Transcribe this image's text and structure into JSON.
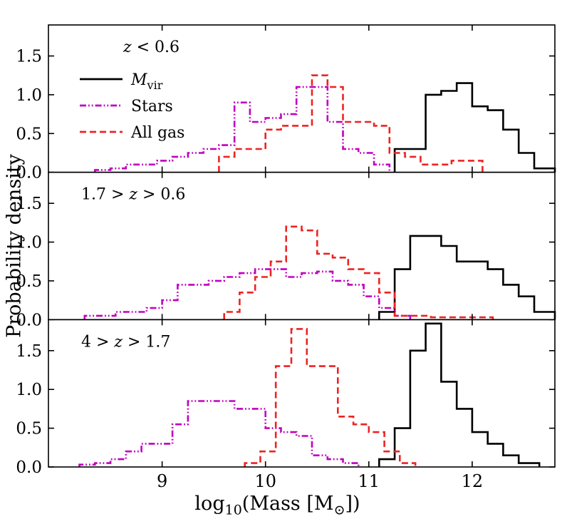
{
  "figure": {
    "ylabel": "Probability density",
    "xlabel": {
      "prefix": "log",
      "sub": "10",
      "mid": "(Mass [M",
      "odot": "⊙",
      "suffix": "])"
    },
    "background": "#ffffff",
    "colors": {
      "mvir": "#000000",
      "stars": "#bf00bf",
      "allgas": "#ee2222"
    }
  },
  "axes": {
    "xlim": [
      7.9,
      12.8
    ],
    "ylim": [
      0.0,
      1.9
    ],
    "xticks": [
      9,
      10,
      11,
      12
    ],
    "xtick_labels": [
      "9",
      "10",
      "11",
      "12"
    ],
    "yticks": [
      0.0,
      0.5,
      1.0,
      1.5
    ],
    "ytick_labels": [
      "0.0",
      "0.5",
      "1.0",
      "1.5"
    ],
    "grid": false,
    "legend_position": "upper-left-of-first-panel"
  },
  "legend": {
    "entries": [
      {
        "key": "mvir",
        "name": "M_vir",
        "color": "#000000",
        "style": "solid",
        "label": [
          {
            "t": "M",
            "italic": true
          },
          {
            "t": "vir",
            "sub": true
          }
        ]
      },
      {
        "key": "stars",
        "name": "Stars",
        "color": "#bf00bf",
        "style": "dashdot",
        "label": [
          {
            "t": "Stars"
          }
        ]
      },
      {
        "key": "allgas",
        "name": "All gas",
        "color": "#ee2222",
        "style": "dashed",
        "label": [
          {
            "t": "All gas"
          }
        ]
      }
    ]
  },
  "chart_data": [
    {
      "type": "step-histogram",
      "panel": "z < 0.6",
      "annotation": [
        {
          "t": "z",
          "italic": true
        },
        {
          "t": " < 0.6"
        }
      ],
      "series": [
        {
          "key": "mvir",
          "name": "M_vir",
          "color": "#000000",
          "style": "solid",
          "edges": [
            11.25,
            11.4,
            11.55,
            11.7,
            11.85,
            12.0,
            12.15,
            12.3,
            12.45,
            12.6,
            12.8
          ],
          "values": [
            0.3,
            0.3,
            1.0,
            1.05,
            1.15,
            0.85,
            0.8,
            0.55,
            0.25,
            0.05
          ]
        },
        {
          "key": "stars",
          "name": "Stars",
          "color": "#bf00bf",
          "style": "dashdot",
          "edges": [
            8.35,
            8.5,
            8.65,
            8.8,
            8.95,
            9.1,
            9.25,
            9.4,
            9.55,
            9.7,
            9.85,
            10.0,
            10.15,
            10.3,
            10.45,
            10.6,
            10.75,
            10.9,
            11.05,
            11.2
          ],
          "values": [
            0.03,
            0.05,
            0.1,
            0.1,
            0.15,
            0.2,
            0.25,
            0.3,
            0.35,
            0.9,
            0.65,
            0.7,
            0.75,
            1.1,
            1.1,
            0.65,
            0.3,
            0.25,
            0.1
          ]
        },
        {
          "key": "allgas",
          "name": "All gas",
          "color": "#ee2222",
          "style": "dashed",
          "edges": [
            9.55,
            9.7,
            9.85,
            10.0,
            10.15,
            10.3,
            10.45,
            10.6,
            10.75,
            10.9,
            11.05,
            11.2,
            11.35,
            11.5,
            11.65,
            11.8,
            11.95,
            12.1
          ],
          "values": [
            0.2,
            0.3,
            0.3,
            0.55,
            0.6,
            0.6,
            1.25,
            1.1,
            0.65,
            0.65,
            0.6,
            0.25,
            0.2,
            0.1,
            0.1,
            0.15,
            0.15
          ]
        }
      ]
    },
    {
      "type": "step-histogram",
      "panel": "1.7 > z > 0.6",
      "annotation": [
        {
          "t": "1.7 > "
        },
        {
          "t": "z",
          "italic": true
        },
        {
          "t": " > 0.6"
        }
      ],
      "series": [
        {
          "key": "mvir",
          "name": "M_vir",
          "color": "#000000",
          "style": "solid",
          "edges": [
            11.1,
            11.25,
            11.4,
            11.55,
            11.7,
            11.85,
            12.0,
            12.15,
            12.3,
            12.45,
            12.6,
            12.8
          ],
          "values": [
            0.1,
            0.65,
            1.08,
            1.08,
            0.95,
            0.75,
            0.75,
            0.65,
            0.45,
            0.3,
            0.1
          ]
        },
        {
          "key": "stars",
          "name": "Stars",
          "color": "#bf00bf",
          "style": "dashdot",
          "edges": [
            8.25,
            8.4,
            8.55,
            8.7,
            8.85,
            9.0,
            9.15,
            9.3,
            9.45,
            9.6,
            9.75,
            9.9,
            10.05,
            10.2,
            10.35,
            10.5,
            10.65,
            10.8,
            10.95,
            11.1,
            11.25,
            11.4
          ],
          "values": [
            0.05,
            0.05,
            0.1,
            0.1,
            0.15,
            0.25,
            0.45,
            0.45,
            0.5,
            0.55,
            0.6,
            0.65,
            0.65,
            0.55,
            0.6,
            0.62,
            0.5,
            0.45,
            0.3,
            0.15,
            0.05
          ]
        },
        {
          "key": "allgas",
          "name": "All gas",
          "color": "#ee2222",
          "style": "dashed",
          "edges": [
            9.6,
            9.75,
            9.9,
            10.05,
            10.2,
            10.35,
            10.5,
            10.65,
            10.8,
            10.95,
            11.1,
            11.25,
            11.6,
            11.9,
            12.2
          ],
          "values": [
            0.1,
            0.35,
            0.55,
            0.75,
            1.2,
            1.15,
            0.85,
            0.8,
            0.65,
            0.6,
            0.35,
            0.05,
            0.03,
            0.03
          ]
        }
      ]
    },
    {
      "type": "step-histogram",
      "panel": "4 > z > 1.7",
      "annotation": [
        {
          "t": "4 > "
        },
        {
          "t": "z",
          "italic": true
        },
        {
          "t": " > 1.7"
        }
      ],
      "series": [
        {
          "key": "mvir",
          "name": "M_vir",
          "color": "#000000",
          "style": "solid",
          "edges": [
            11.1,
            11.25,
            11.4,
            11.55,
            11.7,
            11.85,
            12.0,
            12.15,
            12.3,
            12.45,
            12.65
          ],
          "values": [
            0.1,
            0.5,
            1.5,
            1.85,
            1.1,
            0.75,
            0.45,
            0.3,
            0.15,
            0.05
          ]
        },
        {
          "key": "stars",
          "name": "Stars",
          "color": "#bf00bf",
          "style": "dashdot",
          "edges": [
            8.2,
            8.35,
            8.5,
            8.65,
            8.8,
            8.95,
            9.1,
            9.25,
            9.4,
            9.55,
            9.7,
            9.85,
            10.0,
            10.15,
            10.3,
            10.45,
            10.6,
            10.75,
            10.9
          ],
          "values": [
            0.03,
            0.05,
            0.1,
            0.2,
            0.3,
            0.3,
            0.55,
            0.85,
            0.85,
            0.85,
            0.75,
            0.75,
            0.5,
            0.45,
            0.4,
            0.15,
            0.1,
            0.05
          ]
        },
        {
          "key": "allgas",
          "name": "All gas",
          "color": "#ee2222",
          "style": "dashed",
          "edges": [
            9.8,
            9.95,
            10.1,
            10.25,
            10.4,
            10.55,
            10.7,
            10.85,
            11.0,
            11.15,
            11.3,
            11.45
          ],
          "values": [
            0.05,
            0.2,
            1.3,
            1.78,
            1.3,
            1.3,
            0.65,
            0.55,
            0.45,
            0.2,
            0.05
          ]
        }
      ]
    }
  ]
}
